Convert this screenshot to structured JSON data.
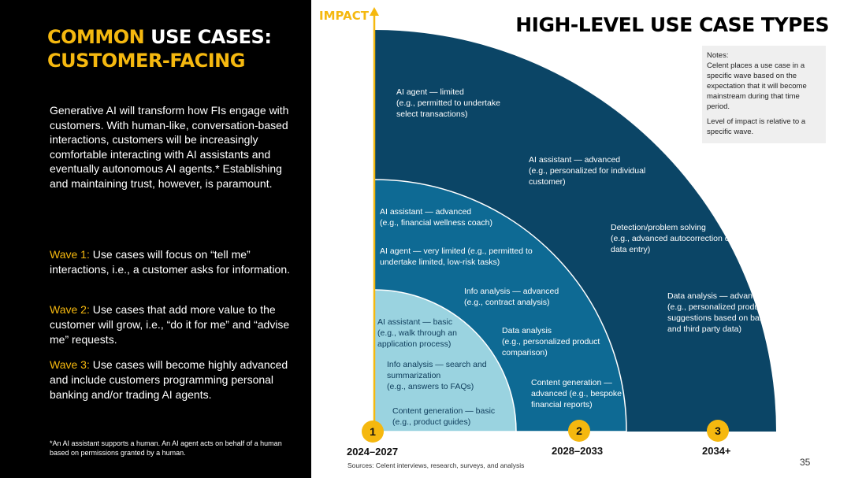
{
  "left": {
    "title_accent": "COMMON",
    "title_rest": " USE CASES:",
    "title_line2": "CUSTOMER-FACING",
    "intro": "Generative AI will transform how FIs engage with customers. With human-like, conversation-based interactions, customers will be increasingly comfortable interacting with AI assistants and eventually autonomous AI agents.* Establishing and maintaining trust, however, is paramount.",
    "wave1_label": "Wave 1:",
    "wave1_text": " Use cases will focus on “tell me” interactions, i.e., a customer asks for information.",
    "wave2_label": "Wave 2:",
    "wave2_text": " Use cases that add more value to the customer will grow, i.e., “do it for me” and “advise me” requests.",
    "wave3_label": "Wave 3:",
    "wave3_text": " Use cases will become highly advanced and include customers programming personal banking and/or trading AI agents.",
    "footnote": "*An AI assistant supports a human. An AI agent acts on behalf of a human based on permissions granted by a human."
  },
  "right": {
    "impact_label": "IMPACT",
    "title": "HIGH-LEVEL USE CASE TYPES",
    "notes_heading": "Notes:",
    "notes_p1": "Celent places a use case in a specific wave based on the expectation that it will become mainstream during that time period.",
    "notes_p2": "Level of impact is relative to a specific wave.",
    "colors": {
      "wave1": "#9ad3e0",
      "wave2": "#0e6a94",
      "wave3": "#0b4566",
      "accent": "#f5b80f"
    },
    "waves": [
      {
        "badge": "1",
        "years": "2024–2027"
      },
      {
        "badge": "2",
        "years": "2028–2033"
      },
      {
        "badge": "3",
        "years": "2034+"
      }
    ],
    "wave3_items": [
      {
        "title": "AI agent — limited",
        "detail": "(e.g., permitted to undertake select transactions)"
      },
      {
        "title": "AI assistant — advanced",
        "detail": "(e.g., personalized for individual customer)"
      },
      {
        "title": "Detection/problem solving",
        "detail": "(e.g., advanced autocorrection of data entry)"
      },
      {
        "title": "Data analysis — advanced",
        "detail": "(e.g., personalized product suggestions based on bank and third party data)"
      }
    ],
    "wave2_items": [
      {
        "title": "AI assistant — advanced",
        "detail": "(e.g., financial wellness coach)"
      },
      {
        "title": "AI agent — very limited",
        "detail": "(e.g., permitted to undertake limited, low-risk tasks)"
      },
      {
        "title": "Info analysis — advanced",
        "detail": "(e.g., contract analysis)"
      },
      {
        "title": "Data analysis",
        "detail": "(e.g., personalized product comparison)"
      },
      {
        "title": "Content generation — advanced",
        "detail": "(e.g., bespoke financial reports)"
      }
    ],
    "wave1_items": [
      {
        "title": "AI assistant — basic",
        "detail": "(e.g., walk through an application process)"
      },
      {
        "title": "Info analysis — search and summarization",
        "detail": "(e.g., answers to FAQs)"
      },
      {
        "title": "Content generation — basic",
        "detail": "(e.g., product guides)"
      }
    ],
    "sources": "Sources: Celent interviews, research, surveys, and analysis",
    "page_number": "35"
  }
}
